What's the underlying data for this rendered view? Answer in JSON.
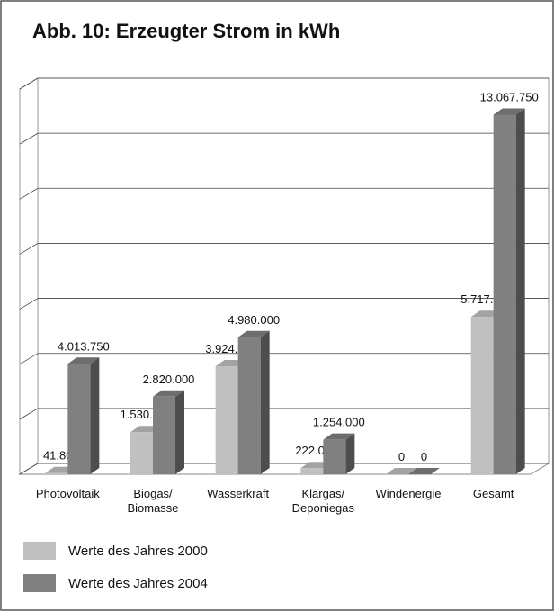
{
  "chart_data": {
    "type": "bar3d",
    "title": "Abb. 10: Erzeugter Strom in kWh",
    "categories": [
      "Photovoltaik",
      "Biogas/\nBiomasse",
      "Wasserkraft",
      "Klärgas/\nDeponiegas",
      "Windenergie",
      "Gesamt"
    ],
    "series": [
      {
        "name": "Werte des Jahres 2000",
        "color": "#c0c0c0",
        "values": [
          41800,
          1530000,
          3924000,
          222000,
          0,
          5717800
        ],
        "value_labels": [
          "41.800",
          "1.530.000",
          "3.924.000",
          "222.000",
          "0",
          "5.717.800"
        ]
      },
      {
        "name": "Werte des Jahres 2004",
        "color": "#808080",
        "values": [
          4013750,
          2820000,
          4980000,
          1254000,
          0,
          13067750
        ],
        "value_labels": [
          "4.013.750",
          "2.820.000",
          "4.980.000",
          "1.254.000",
          "0",
          "13.067.750"
        ]
      }
    ],
    "ylim": [
      0,
      14000000
    ],
    "yticks": [
      0,
      2000000,
      4000000,
      6000000,
      8000000,
      10000000,
      12000000,
      14000000
    ],
    "grid": true
  }
}
